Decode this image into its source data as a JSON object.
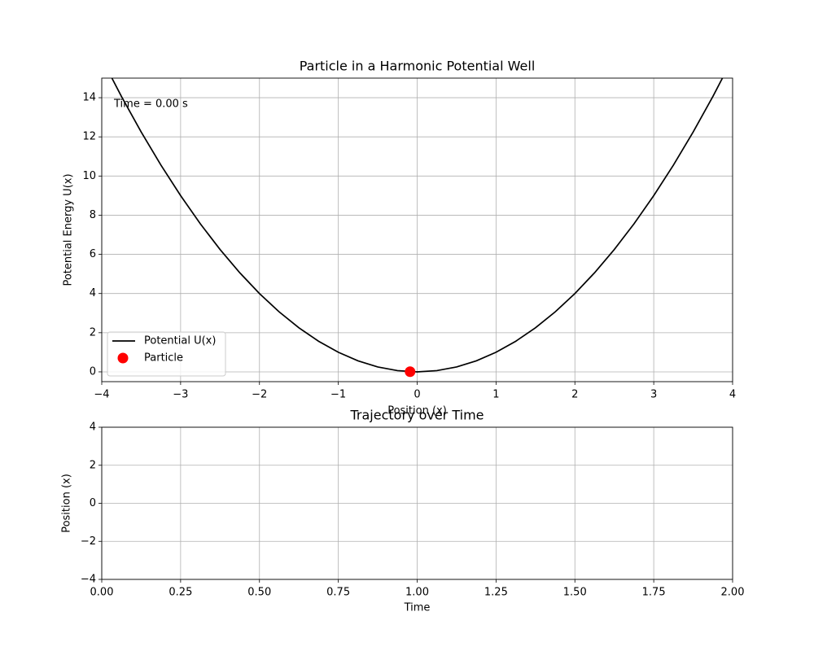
{
  "chart_data": [
    {
      "type": "line",
      "title": "Particle in a Harmonic Potential Well",
      "xlabel": "Position (x)",
      "ylabel": "Potential Energy U(x)",
      "annotation": "Time = 0.00 s",
      "xlim": [
        -4,
        4
      ],
      "ylim": [
        -0.5,
        15
      ],
      "xticks": [
        {
          "value": -4,
          "label": "−4"
        },
        {
          "value": -3,
          "label": "−3"
        },
        {
          "value": -2,
          "label": "−2"
        },
        {
          "value": -1,
          "label": "−1"
        },
        0,
        1,
        2,
        3,
        4
      ],
      "yticks": [
        0,
        2,
        4,
        6,
        8,
        10,
        12,
        14
      ],
      "grid": true,
      "legend": "lower left",
      "series": [
        {
          "name": "Potential U(x)",
          "color": "#000000",
          "mode": "line",
          "x": [
            -4,
            -3.75,
            -3.5,
            -3.25,
            -3,
            -2.75,
            -2.5,
            -2.25,
            -2,
            -1.75,
            -1.5,
            -1.25,
            -1,
            -0.75,
            -0.5,
            -0.25,
            0,
            0.25,
            0.5,
            0.75,
            1,
            1.25,
            1.5,
            1.75,
            2,
            2.25,
            2.5,
            2.75,
            3,
            3.25,
            3.5,
            3.75,
            4
          ],
          "values": [
            16,
            14.0625,
            12.25,
            10.5625,
            9,
            7.5625,
            6.25,
            5.0625,
            4,
            3.0625,
            2.25,
            1.5625,
            1,
            0.5625,
            0.25,
            0.0625,
            0,
            0.0625,
            0.25,
            0.5625,
            1,
            1.5625,
            2.25,
            3.0625,
            4,
            5.0625,
            6.25,
            7.5625,
            9,
            10.5625,
            12.25,
            14.0625,
            16
          ]
        },
        {
          "name": "Particle",
          "color": "#ff0000",
          "mode": "marker",
          "x": [
            -0.09
          ],
          "values": [
            0.01
          ]
        }
      ]
    },
    {
      "type": "line",
      "title": "Trajectory over Time",
      "xlabel": "Time",
      "ylabel": "Position (x)",
      "xlim": [
        0,
        2
      ],
      "ylim": [
        -4,
        4
      ],
      "xticks": [
        {
          "value": 0,
          "label": "0.00"
        },
        {
          "value": 0.25,
          "label": "0.25"
        },
        {
          "value": 0.5,
          "label": "0.50"
        },
        {
          "value": 0.75,
          "label": "0.75"
        },
        {
          "value": 1,
          "label": "1.00"
        },
        {
          "value": 1.25,
          "label": "1.25"
        },
        {
          "value": 1.5,
          "label": "1.50"
        },
        {
          "value": 1.75,
          "label": "1.75"
        },
        {
          "value": 2,
          "label": "2.00"
        }
      ],
      "yticks": [
        {
          "value": -4,
          "label": "−4"
        },
        {
          "value": -2,
          "label": "−2"
        },
        0,
        2,
        4
      ],
      "grid": true
    }
  ]
}
